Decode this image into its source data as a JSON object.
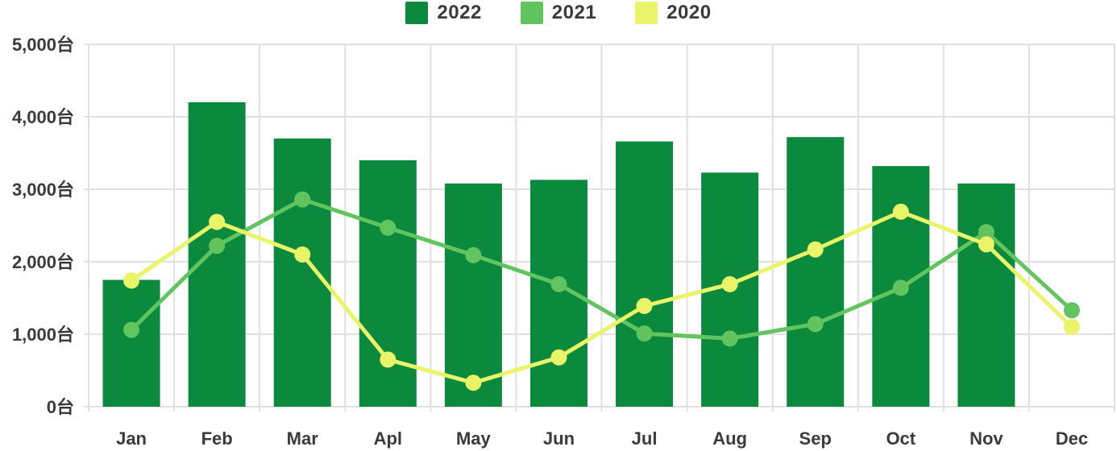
{
  "chart_data": {
    "type": "bar",
    "subtype": "bar-line-combo",
    "title": "",
    "xlabel": "",
    "ylabel": "",
    "unit": "台",
    "ylim": [
      0,
      5000
    ],
    "grid": true,
    "legend_position": "top-center",
    "categories": [
      "Jan",
      "Feb",
      "Mar",
      "Apl",
      "May",
      "Jun",
      "Jul",
      "Aug",
      "Sep",
      "Oct",
      "Nov",
      "Dec"
    ],
    "series": [
      {
        "name": "2022",
        "render": "bar",
        "color": "#0b8a3e",
        "values": [
          1750,
          4200,
          3700,
          3400,
          3080,
          3130,
          3660,
          3230,
          3720,
          3320,
          3080,
          null
        ]
      },
      {
        "name": "2021",
        "render": "line",
        "color": "#62c45e",
        "values": [
          1060,
          2220,
          2860,
          2470,
          2090,
          1690,
          1010,
          940,
          1140,
          1640,
          2410,
          1330
        ]
      },
      {
        "name": "2020",
        "render": "line",
        "color": "#e9f468",
        "values": [
          1740,
          2550,
          2100,
          650,
          330,
          680,
          1390,
          1690,
          2170,
          2690,
          2240,
          1100
        ]
      }
    ],
    "y_ticks": [
      {
        "value": 0,
        "label": "0台"
      },
      {
        "value": 1000,
        "label": "1,000台"
      },
      {
        "value": 2000,
        "label": "2,000台"
      },
      {
        "value": 3000,
        "label": "3,000台"
      },
      {
        "value": 4000,
        "label": "4,000台"
      },
      {
        "value": 5000,
        "label": "5,000台"
      }
    ],
    "colors": {
      "grid": "#e0e0e0",
      "text": "#3a3a3a",
      "background": "#ffffff"
    }
  }
}
